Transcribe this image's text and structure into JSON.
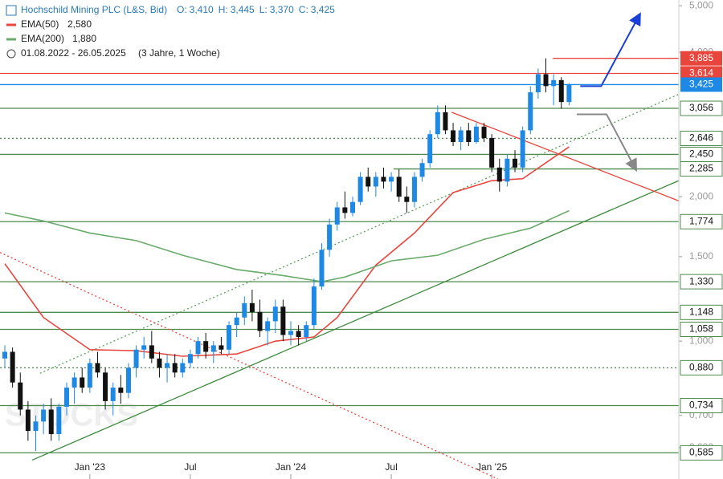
{
  "chart_data": {
    "type": "candlestick",
    "header": {
      "title": "Hochschild Mining PLC (L&S, Bid)",
      "ohlc": [
        {
          "name": "O:",
          "value": "3,410"
        },
        {
          "name": "H:",
          "value": "3,445"
        },
        {
          "name": "L:",
          "value": "3,370"
        },
        {
          "name": "C:",
          "value": "3,425"
        }
      ],
      "range": "01.08.2022 - 26.05.2025",
      "span": "(3 Jahre, 1 Woche)"
    },
    "watermark": "STOCKS",
    "log_scale": true,
    "ylim": [
      0.516,
      5.14
    ],
    "yticks": [
      {
        "value": 0.6,
        "label": "0,600"
      },
      {
        "value": 0.7,
        "label": "0,700"
      },
      {
        "value": 1,
        "label": "1,000"
      },
      {
        "value": 1.5,
        "label": "1,500"
      },
      {
        "value": 2,
        "label": "2,000"
      },
      {
        "value": 4,
        "label": "4,000"
      },
      {
        "value": 5,
        "label": "5,000"
      }
    ],
    "xlim": [
      -1.25,
      174.4
    ],
    "xticks": [
      {
        "value": 22,
        "label": "Jan '23"
      },
      {
        "value": 48,
        "label": "Jul"
      },
      {
        "value": 74,
        "label": "Jan '24"
      },
      {
        "value": 100,
        "label": "Jul"
      },
      {
        "value": 126,
        "label": "Jan '25"
      }
    ],
    "up_color": "#1e88e5",
    "down_color": "#111111",
    "x": [
      0,
      2,
      4,
      6,
      8,
      10,
      12,
      14,
      16,
      18,
      20,
      22,
      24,
      26,
      28,
      30,
      32,
      34,
      36,
      38,
      40,
      42,
      44,
      46,
      48,
      50,
      52,
      54,
      56,
      58,
      60,
      62,
      64,
      66,
      68,
      70,
      72,
      74,
      76,
      78,
      80,
      82,
      84,
      86,
      88,
      90,
      92,
      94,
      96,
      98,
      100,
      102,
      104,
      106,
      108,
      110,
      112,
      114,
      116,
      118,
      120,
      122,
      124,
      126,
      128,
      130,
      132,
      134,
      136,
      138,
      140,
      142,
      144,
      146
    ],
    "ohlc": [
      [
        0.92,
        0.98,
        0.88,
        0.95
      ],
      [
        0.95,
        0.97,
        0.8,
        0.82
      ],
      [
        0.82,
        0.86,
        0.7,
        0.72
      ],
      [
        0.72,
        0.75,
        0.62,
        0.65
      ],
      [
        0.65,
        0.7,
        0.59,
        0.68
      ],
      [
        0.68,
        0.74,
        0.64,
        0.72
      ],
      [
        0.72,
        0.76,
        0.62,
        0.64
      ],
      [
        0.64,
        0.74,
        0.62,
        0.73
      ],
      [
        0.73,
        0.82,
        0.7,
        0.8
      ],
      [
        0.8,
        0.86,
        0.74,
        0.84
      ],
      [
        0.84,
        0.88,
        0.78,
        0.8
      ],
      [
        0.8,
        0.92,
        0.78,
        0.9
      ],
      [
        0.9,
        0.95,
        0.84,
        0.86
      ],
      [
        0.86,
        0.88,
        0.72,
        0.75
      ],
      [
        0.75,
        0.82,
        0.7,
        0.8
      ],
      [
        0.8,
        0.85,
        0.74,
        0.78
      ],
      [
        0.78,
        0.9,
        0.76,
        0.88
      ],
      [
        0.88,
        0.98,
        0.84,
        0.96
      ],
      [
        0.96,
        1.02,
        0.92,
        0.98
      ],
      [
        0.98,
        1.05,
        0.9,
        0.92
      ],
      [
        0.92,
        0.95,
        0.84,
        0.88
      ],
      [
        0.88,
        0.94,
        0.82,
        0.9
      ],
      [
        0.9,
        0.94,
        0.84,
        0.86
      ],
      [
        0.86,
        0.92,
        0.84,
        0.9
      ],
      [
        0.9,
        0.96,
        0.88,
        0.94
      ],
      [
        0.94,
        1.02,
        0.92,
        1.0
      ],
      [
        1.0,
        1.04,
        0.92,
        0.95
      ],
      [
        0.95,
        1.0,
        0.9,
        0.98
      ],
      [
        0.98,
        1.02,
        0.94,
        0.96
      ],
      [
        0.96,
        1.1,
        0.94,
        1.08
      ],
      [
        1.08,
        1.15,
        1.02,
        1.12
      ],
      [
        1.12,
        1.24,
        1.08,
        1.2
      ],
      [
        1.2,
        1.28,
        1.1,
        1.15
      ],
      [
        1.15,
        1.22,
        1.02,
        1.05
      ],
      [
        1.05,
        1.12,
        0.98,
        1.1
      ],
      [
        1.1,
        1.22,
        1.04,
        1.18
      ],
      [
        1.18,
        1.22,
        1.0,
        1.03
      ],
      [
        1.03,
        1.1,
        0.98,
        1.05
      ],
      [
        1.05,
        1.08,
        0.98,
        1.02
      ],
      [
        1.02,
        1.1,
        1.0,
        1.08
      ],
      [
        1.08,
        1.35,
        1.06,
        1.3
      ],
      [
        1.3,
        1.6,
        1.28,
        1.55
      ],
      [
        1.55,
        1.8,
        1.5,
        1.75
      ],
      [
        1.75,
        1.95,
        1.7,
        1.9
      ],
      [
        1.9,
        2.05,
        1.8,
        1.85
      ],
      [
        1.85,
        2.0,
        1.82,
        1.95
      ],
      [
        1.95,
        2.25,
        1.92,
        2.2
      ],
      [
        2.2,
        2.3,
        2.05,
        2.1
      ],
      [
        2.1,
        2.25,
        2.0,
        2.2
      ],
      [
        2.2,
        2.3,
        2.08,
        2.15
      ],
      [
        2.15,
        2.25,
        2.05,
        2.2
      ],
      [
        2.2,
        2.28,
        1.95,
        2.0
      ],
      [
        2.0,
        2.1,
        1.85,
        1.95
      ],
      [
        1.95,
        2.25,
        1.9,
        2.2
      ],
      [
        2.2,
        2.4,
        2.15,
        2.35
      ],
      [
        2.35,
        2.75,
        2.3,
        2.7
      ],
      [
        2.7,
        3.1,
        2.65,
        3.0
      ],
      [
        3.0,
        3.1,
        2.7,
        2.75
      ],
      [
        2.75,
        2.85,
        2.55,
        2.6
      ],
      [
        2.6,
        2.8,
        2.5,
        2.75
      ],
      [
        2.75,
        2.85,
        2.55,
        2.6
      ],
      [
        2.6,
        2.85,
        2.58,
        2.8
      ],
      [
        2.8,
        2.85,
        2.6,
        2.65
      ],
      [
        2.65,
        2.7,
        2.25,
        2.3
      ],
      [
        2.3,
        2.4,
        2.05,
        2.15
      ],
      [
        2.15,
        2.45,
        2.1,
        2.4
      ],
      [
        2.4,
        2.5,
        2.25,
        2.3
      ],
      [
        2.3,
        2.8,
        2.25,
        2.75
      ],
      [
        2.75,
        3.4,
        2.7,
        3.3
      ],
      [
        3.3,
        3.7,
        3.2,
        3.6
      ],
      [
        3.6,
        3.885,
        3.3,
        3.4
      ],
      [
        3.4,
        3.6,
        3.1,
        3.5
      ],
      [
        3.5,
        3.55,
        3.05,
        3.15
      ],
      [
        3.15,
        3.45,
        3.1,
        3.425
      ]
    ],
    "series": [
      {
        "name": "EMA(50)",
        "label": "2,580",
        "color": "#e8453c",
        "x": [
          0,
          10,
          22,
          34,
          46,
          60,
          70,
          80,
          86,
          96,
          106,
          116,
          126,
          134,
          146
        ],
        "values": [
          1.45,
          1.12,
          0.96,
          0.955,
          0.93,
          0.94,
          1.0,
          1.02,
          1.12,
          1.44,
          1.68,
          2.04,
          2.16,
          2.18,
          2.54
        ]
      },
      {
        "name": "EMA(200)",
        "label": "1,880",
        "color": "#6aaa6a",
        "x": [
          0,
          10,
          22,
          34,
          46,
          60,
          72,
          82,
          88,
          100,
          112,
          124,
          136,
          146
        ],
        "values": [
          1.85,
          1.78,
          1.68,
          1.62,
          1.51,
          1.41,
          1.37,
          1.33,
          1.36,
          1.47,
          1.51,
          1.63,
          1.72,
          1.87
        ]
      }
    ],
    "levels": [
      {
        "value": 3.885,
        "label": "3,885",
        "color": "#e8453c",
        "from": 141.8
      },
      {
        "value": 3.614,
        "label": "3,614",
        "color": "#e8453c"
      },
      {
        "value": 3.425,
        "label": "3,425",
        "color": "#1e88e5"
      },
      {
        "value": 3.056,
        "label": "3,056",
        "color": "#4e8a4e"
      },
      {
        "value": 2.646,
        "label": "2,646",
        "color": "#4e8a4e",
        "dotted": true
      },
      {
        "value": 2.45,
        "label": "2,450",
        "color": "#4e8a4e"
      },
      {
        "value": 2.285,
        "label": "2,285",
        "color": "#4e8a4e",
        "from": 100.6
      },
      {
        "value": 1.774,
        "label": "1,774",
        "color": "#4e8a4e"
      },
      {
        "value": 1.33,
        "label": "1,330",
        "color": "#4e8a4e"
      },
      {
        "value": 1.148,
        "label": "1,148",
        "color": "#4e8a4e"
      },
      {
        "value": 1.058,
        "label": "1,058",
        "color": "#4e8a4e"
      },
      {
        "value": 0.88,
        "label": "0,880",
        "color": "#4e8a4e",
        "dotted": true
      },
      {
        "value": 0.734,
        "label": "0,734",
        "color": "#4e8a4e"
      },
      {
        "value": 0.585,
        "label": "0,585",
        "color": "#4e8a4e"
      }
    ],
    "trendlines": [
      {
        "color": "#3d8c3d",
        "x": [
          7.07,
          174.4
        ],
        "values": [
          0.565,
          2.16
        ]
      },
      {
        "color": "#5aa05a",
        "dotted": true,
        "x": [
          9.1,
          174.4
        ],
        "values": [
          0.857,
          3.27
        ]
      },
      {
        "color": "#e8453c",
        "dotted": true,
        "x": [
          -1.25,
          127.6
        ],
        "values": [
          1.53,
          0.516
        ]
      },
      {
        "color": "#e8453c",
        "x": [
          115.6,
          174.4
        ],
        "values": [
          3.0,
          1.96
        ]
      },
      {
        "color": "#1a3fd6",
        "arrow": true,
        "x": [
          148.9,
          154.3,
          164
        ],
        "values": [
          3.4,
          3.4,
          4.75
        ]
      },
      {
        "color": "#888888",
        "arrow": true,
        "x": [
          148,
          155.7,
          163
        ],
        "values": [
          2.97,
          2.97,
          2.3
        ]
      }
    ]
  }
}
